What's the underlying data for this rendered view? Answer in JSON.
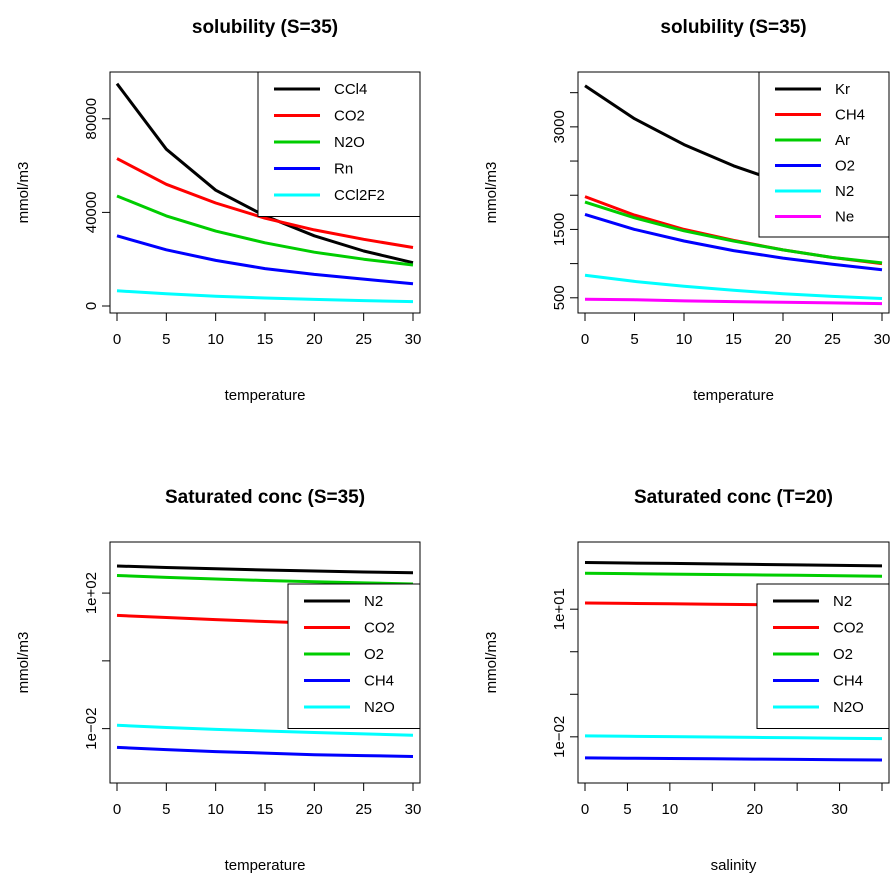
{
  "chart_data": [
    {
      "type": "line",
      "title": "solubility (S=35)",
      "xlabel": "temperature",
      "ylabel": "mmol/m3",
      "xlim": [
        0,
        30
      ],
      "ylim": [
        0,
        97000
      ],
      "y_scale": "linear",
      "xticks": [
        0,
        5,
        10,
        15,
        20,
        25,
        30
      ],
      "xtick_labels": [
        "0",
        "5",
        "10",
        "15",
        "20",
        "25",
        "30"
      ],
      "yticks": [
        0,
        40000,
        80000
      ],
      "ytick_labels": [
        "0",
        "40000",
        "80000"
      ],
      "legend_position": "top-right",
      "x": [
        0,
        5,
        10,
        15,
        20,
        25,
        30
      ],
      "series": [
        {
          "name": "CCl4",
          "color": "#000000",
          "values": [
            95000,
            67000,
            49500,
            38500,
            30000,
            23500,
            18500
          ]
        },
        {
          "name": "CO2",
          "color": "#ff0000",
          "values": [
            63000,
            52000,
            44000,
            37500,
            32500,
            28500,
            25000
          ]
        },
        {
          "name": "N2O",
          "color": "#00cd00",
          "values": [
            47000,
            38500,
            32000,
            27000,
            23000,
            20000,
            17500
          ]
        },
        {
          "name": "Rn",
          "color": "#0000ff",
          "values": [
            30000,
            24000,
            19500,
            16000,
            13500,
            11500,
            9500
          ]
        },
        {
          "name": "CCl2F2",
          "color": "#00ffff",
          "values": [
            6500,
            5200,
            4200,
            3400,
            2800,
            2300,
            1900
          ]
        }
      ]
    },
    {
      "type": "line",
      "title": "solubility (S=35)",
      "xlabel": "temperature",
      "ylabel": "mmol/m3",
      "xlim": [
        0,
        30
      ],
      "ylim": [
        380,
        3700
      ],
      "y_scale": "linear",
      "xticks": [
        0,
        5,
        10,
        15,
        20,
        25,
        30
      ],
      "xtick_labels": [
        "0",
        "5",
        "10",
        "15",
        "20",
        "25",
        "30"
      ],
      "yticks": [
        500,
        1500,
        3000
      ],
      "ytick_labels": [
        "500",
        "1500",
        "3000"
      ],
      "minor_yticks": [
        1000,
        2000,
        2500,
        3500
      ],
      "legend_position": "top-right",
      "x": [
        0,
        5,
        10,
        15,
        20,
        25,
        30
      ],
      "series": [
        {
          "name": "Kr",
          "color": "#000000",
          "values": [
            3600,
            3120,
            2740,
            2430,
            2180,
            1980,
            1800
          ]
        },
        {
          "name": "CH4",
          "color": "#ff0000",
          "values": [
            1980,
            1710,
            1500,
            1340,
            1200,
            1090,
            1000
          ]
        },
        {
          "name": "Ar",
          "color": "#00cd00",
          "values": [
            1900,
            1670,
            1480,
            1330,
            1200,
            1090,
            1010
          ]
        },
        {
          "name": "O2",
          "color": "#0000ff",
          "values": [
            1720,
            1500,
            1330,
            1190,
            1080,
            990,
            910
          ]
        },
        {
          "name": "N2",
          "color": "#00ffff",
          "values": [
            830,
            740,
            670,
            610,
            560,
            520,
            490
          ]
        },
        {
          "name": "Ne",
          "color": "#ff00ff",
          "values": [
            480,
            470,
            455,
            445,
            435,
            425,
            415
          ]
        }
      ]
    },
    {
      "type": "line",
      "title": "Saturated conc (S=35)",
      "xlabel": "temperature",
      "ylabel": "mmol/m3",
      "xlim": [
        0,
        30
      ],
      "ylim": [
        0.0004,
        2000
      ],
      "y_scale": "log",
      "xticks": [
        0,
        5,
        10,
        15,
        20,
        25,
        30
      ],
      "xtick_labels": [
        "0",
        "5",
        "10",
        "15",
        "20",
        "25",
        "30"
      ],
      "yticks": [
        0.01,
        1,
        100
      ],
      "ytick_labels": [
        "1e−02",
        "",
        "1e+02"
      ],
      "legend_position": "right",
      "x": [
        0,
        5,
        10,
        15,
        20,
        25,
        30
      ],
      "series": [
        {
          "name": "N2",
          "color": "#000000",
          "values": [
            630,
            570,
            520,
            480,
            450,
            420,
            400
          ]
        },
        {
          "name": "CO2",
          "color": "#ff0000",
          "values": [
            22,
            19,
            16.5,
            14.5,
            13,
            11.8,
            10.5
          ]
        },
        {
          "name": "O2",
          "color": "#00cd00",
          "values": [
            330,
            290,
            260,
            235,
            215,
            200,
            185
          ]
        },
        {
          "name": "CH4",
          "color": "#0000ff",
          "values": [
            0.0028,
            0.0024,
            0.0021,
            0.0019,
            0.0017,
            0.0016,
            0.0015
          ]
        },
        {
          "name": "N2O",
          "color": "#00ffff",
          "values": [
            0.0125,
            0.0108,
            0.0095,
            0.0085,
            0.0077,
            0.007,
            0.0064
          ]
        }
      ]
    },
    {
      "type": "line",
      "title": "Saturated conc (T=20)",
      "xlabel": "salinity",
      "ylabel": "mmol/m3",
      "xlim": [
        0,
        35
      ],
      "ylim": [
        0.0012,
        260
      ],
      "y_scale": "log",
      "xticks": [
        0,
        5,
        10,
        20,
        30
      ],
      "xtick_labels": [
        "0",
        "5",
        "10",
        "20",
        "30"
      ],
      "minor_xticks": [
        15,
        25,
        35
      ],
      "yticks": [
        0.01,
        0.1,
        1,
        10
      ],
      "ytick_labels": [
        "1e−02",
        "",
        "",
        "1e+01"
      ],
      "legend_position": "right",
      "x": [
        0,
        5,
        10,
        15,
        20,
        25,
        30,
        35
      ],
      "series": [
        {
          "name": "N2",
          "color": "#000000",
          "values": [
            125,
            122,
            119,
            116,
            113,
            110,
            107,
            104
          ]
        },
        {
          "name": "CO2",
          "color": "#ff0000",
          "values": [
            14,
            13.7,
            13.4,
            13.1,
            12.8,
            12.5,
            12.2,
            11.9
          ]
        },
        {
          "name": "O2",
          "color": "#00cd00",
          "values": [
            70,
            68.5,
            67,
            65.5,
            64,
            62.5,
            61,
            59.5
          ]
        },
        {
          "name": "CH4",
          "color": "#0000ff",
          "values": [
            0.0032,
            0.00315,
            0.0031,
            0.00305,
            0.003,
            0.00295,
            0.0029,
            0.00285
          ]
        },
        {
          "name": "N2O",
          "color": "#00ffff",
          "values": [
            0.0105,
            0.0103,
            0.0101,
            0.0099,
            0.0097,
            0.0095,
            0.0093,
            0.0091
          ]
        }
      ]
    }
  ]
}
